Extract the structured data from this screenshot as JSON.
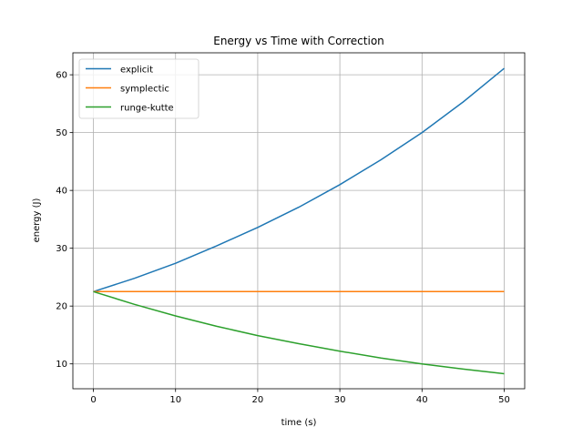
{
  "chart_data": {
    "type": "line",
    "title": "Energy vs Time with Correction",
    "xlabel": "time (s)",
    "ylabel": "energy (J)",
    "xlim": [
      -2.5,
      52.5
    ],
    "ylim": [
      5.7,
      63.8
    ],
    "xticks": [
      0,
      10,
      20,
      30,
      40,
      50
    ],
    "yticks": [
      10,
      20,
      30,
      40,
      50,
      60
    ],
    "grid": true,
    "legend_position": "upper-left",
    "series": [
      {
        "name": "explicit",
        "color": "#1f77b4",
        "x": [
          0,
          5,
          10,
          15,
          20,
          25,
          30,
          35,
          40,
          45,
          50
        ],
        "y": [
          22.5,
          24.8,
          27.4,
          30.4,
          33.6,
          37.1,
          41.0,
          45.3,
          50.0,
          55.3,
          61.1
        ]
      },
      {
        "name": "symplectic",
        "color": "#ff7f0e",
        "x": [
          0,
          5,
          10,
          15,
          20,
          25,
          30,
          35,
          40,
          45,
          50
        ],
        "y": [
          22.5,
          22.5,
          22.5,
          22.5,
          22.5,
          22.5,
          22.5,
          22.5,
          22.5,
          22.5,
          22.5
        ]
      },
      {
        "name": "runge-kutte",
        "color": "#2ca02c",
        "x": [
          0,
          5,
          10,
          15,
          20,
          25,
          30,
          35,
          40,
          45,
          50
        ],
        "y": [
          22.5,
          20.3,
          18.3,
          16.5,
          14.9,
          13.5,
          12.2,
          11.0,
          10.0,
          9.1,
          8.3
        ]
      }
    ]
  }
}
